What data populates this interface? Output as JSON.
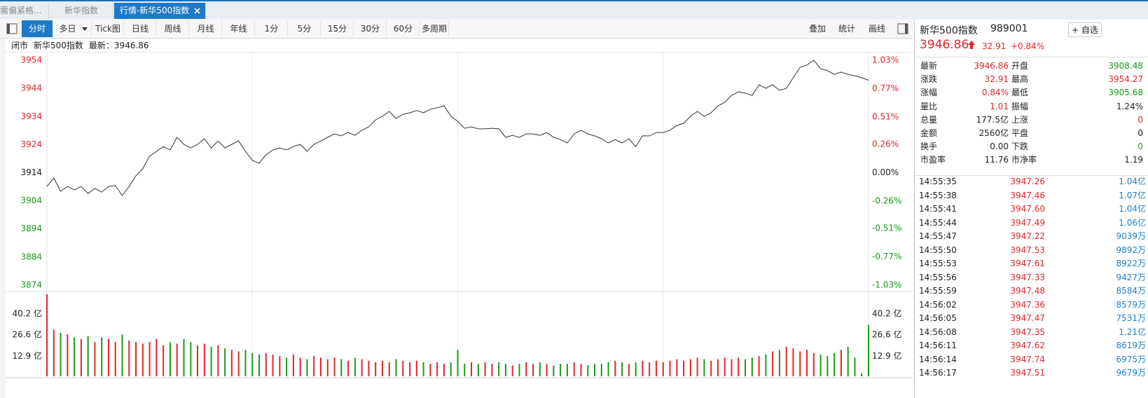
{
  "tabs": [
    "需偏紧格...",
    "新华指数",
    "行情-新华500指数"
  ],
  "toolbar": [
    "分时",
    "多日",
    "Tick图",
    "日线",
    "周线",
    "月线",
    "年线",
    "1分",
    "5分",
    "15分",
    "30分",
    "60分",
    "多周期"
  ],
  "toolbar_right": [
    "叠加",
    "统计",
    "画线"
  ],
  "status": {
    "state": "闭市",
    "name": "新华500指数",
    "latest": "最新：3946.86"
  },
  "quote": {
    "name": "新华500指数",
    "code": "989001",
    "add": "+ 自选",
    "price": "3946.86",
    "change": "32.91",
    "change_pct": "+0.84%",
    "rows": [
      [
        "最新",
        "3946.86",
        "开盘",
        "3908.48"
      ],
      [
        "涨跌",
        "32.91",
        "最高",
        "3954.27"
      ],
      [
        "涨幅",
        "0.84%",
        "最低",
        "3905.68"
      ],
      [
        "量比",
        "1.01",
        "振幅",
        "1.24%"
      ],
      [
        "总量",
        "177.5亿",
        "上涨",
        "0"
      ],
      [
        "金额",
        "2560亿",
        "平盘",
        "0"
      ],
      [
        "换手",
        "0.00",
        "下跌",
        "0"
      ],
      [
        "市盈率",
        "11.76",
        "市净率",
        "1.19"
      ]
    ]
  },
  "trades": [
    [
      "14:55:35",
      "3947.26",
      "1.04亿"
    ],
    [
      "14:55:38",
      "3947.46",
      "1.07亿"
    ],
    [
      "14:55:41",
      "3947.60",
      "1.04亿"
    ],
    [
      "14:55:44",
      "3947.49",
      "1.06亿"
    ],
    [
      "14:55:47",
      "3947.22",
      "9039万"
    ],
    [
      "14:55:50",
      "3947.53",
      "9892万"
    ],
    [
      "14:55:53",
      "3947.61",
      "8922万"
    ],
    [
      "14:55:56",
      "3947.33",
      "9427万"
    ],
    [
      "14:55:59",
      "3947.48",
      "8584万"
    ],
    [
      "14:56:02",
      "3947.36",
      "8579万"
    ],
    [
      "14:56:05",
      "3947.47",
      "7531万"
    ],
    [
      "14:56:08",
      "3947.35",
      "1.21亿"
    ],
    [
      "14:56:11",
      "3947.62",
      "8619万"
    ],
    [
      "14:56:14",
      "3947.74",
      "6975万"
    ],
    [
      "14:56:17",
      "3947.51",
      "9679万"
    ]
  ],
  "chart_data": {
    "type": "line",
    "color": "#333333",
    "up_color": "#e0262b",
    "down_color": "#1a9a1a",
    "x": [
      0,
      2,
      4,
      6,
      8,
      10,
      12,
      14,
      16,
      18,
      20,
      22,
      24,
      26,
      28,
      30,
      32,
      34,
      36,
      38,
      40,
      42,
      44,
      46,
      48,
      50,
      52,
      54,
      56,
      58,
      60,
      62,
      64,
      66,
      68,
      70,
      72,
      74,
      76,
      78,
      80,
      82,
      84,
      86,
      88,
      90,
      92,
      94,
      96,
      98,
      100,
      102,
      104,
      106,
      108,
      110,
      112,
      114,
      116,
      118,
      120,
      122,
      124,
      126,
      128,
      130,
      132,
      134,
      136,
      138,
      140,
      142,
      144,
      146,
      148,
      150,
      152,
      154,
      156,
      158,
      160,
      162,
      164,
      166,
      168,
      170,
      172,
      174,
      176,
      178,
      180,
      182,
      184,
      186,
      188,
      190,
      192,
      194,
      196,
      198,
      200,
      202,
      204,
      206,
      208,
      210,
      212,
      214,
      216,
      218,
      220,
      222,
      224,
      226,
      228,
      230,
      232,
      234,
      236,
      238,
      240
    ],
    "values": [
      3909.1,
      3912.1,
      3907.4,
      3909.1,
      3907.9,
      3909.1,
      3906.6,
      3908.4,
      3907.1,
      3909.1,
      3909.4,
      3905.9,
      3909.1,
      3912.9,
      3915.4,
      3919.9,
      3921.6,
      3923.3,
      3922.1,
      3926.6,
      3924.1,
      3922.8,
      3924.1,
      3926.1,
      3922.8,
      3925.3,
      3922.8,
      3924.1,
      3925.3,
      3921.6,
      3918.4,
      3917.4,
      3920.4,
      3922.1,
      3922.8,
      3922.1,
      3923.3,
      3924.1,
      3921.6,
      3924.1,
      3925.3,
      3926.6,
      3927.8,
      3927.1,
      3928.3,
      3927.3,
      3929.1,
      3930.3,
      3932.8,
      3934.1,
      3935.8,
      3933.3,
      3934.8,
      3935.3,
      3936.1,
      3935.3,
      3936.6,
      3937.1,
      3937.8,
      3934.1,
      3932.3,
      3929.8,
      3930.3,
      3929.6,
      3929.6,
      3929.8,
      3929.6,
      3926.6,
      3927.3,
      3926.6,
      3927.8,
      3927.8,
      3927.3,
      3928.3,
      3926.6,
      3925.8,
      3924.6,
      3927.8,
      3929.1,
      3927.8,
      3927.1,
      3926.1,
      3924.6,
      3925.8,
      3924.6,
      3926.1,
      3923.3,
      3927.1,
      3927.1,
      3928.3,
      3928.3,
      3929.1,
      3930.8,
      3931.6,
      3934.1,
      3935.8,
      3934.1,
      3935.3,
      3937.8,
      3939.0,
      3941.5,
      3942.8,
      3942.3,
      3941.5,
      3945.3,
      3944.0,
      3945.3,
      3943.3,
      3944.0,
      3947.8,
      3951.5,
      3952.3,
      3954.0,
      3951.0,
      3950.3,
      3949.0,
      3949.8,
      3949.0,
      3948.5,
      3947.8,
      3946.9
    ],
    "xlim": [
      0,
      240
    ],
    "ylim": [
      3872,
      3956
    ],
    "yticks": [
      3874,
      3884,
      3894,
      3904,
      3914,
      3924,
      3934,
      3944,
      3954
    ],
    "y2lim": [
      -1.08,
      1.08
    ],
    "y2ticks": [
      {
        "value": -1.03,
        "label": "-1.03%"
      },
      {
        "value": -0.77,
        "label": "-0.77%"
      },
      {
        "value": -0.51,
        "label": "-0.51%"
      },
      {
        "value": -0.26,
        "label": "-0.26%"
      },
      {
        "value": 0,
        "label": "0.00%"
      },
      {
        "value": 0.26,
        "label": "0.26%"
      },
      {
        "value": 0.51,
        "label": "0.51%"
      },
      {
        "value": 0.77,
        "label": "0.77%"
      },
      {
        "value": 1.03,
        "label": "1.03%"
      }
    ],
    "volume": {
      "ylim": [
        0,
        53.7
      ],
      "yticks": [
        {
          "value": 12.9,
          "label": "12.9 亿"
        },
        {
          "value": 26.6,
          "label": "26.6 亿"
        },
        {
          "value": 40.2,
          "label": "40.2 亿"
        }
      ],
      "values": [
        52.8,
        30,
        28,
        27,
        25,
        24,
        26,
        22,
        25,
        24,
        22,
        27,
        23,
        22,
        21,
        22,
        24,
        20,
        22,
        21,
        24,
        22,
        20,
        21,
        19,
        20,
        18,
        17,
        16,
        17,
        15,
        14,
        15,
        14,
        13,
        12,
        14,
        12,
        11,
        13,
        12,
        11,
        12,
        11,
        10,
        12,
        11,
        10,
        9,
        10,
        9,
        11,
        10,
        9,
        10,
        9,
        8,
        9,
        8,
        9,
        17,
        8,
        9,
        8,
        9,
        8,
        9,
        8,
        7,
        8,
        9,
        8,
        9,
        8,
        7,
        8,
        8,
        9,
        8,
        7,
        8,
        8,
        9,
        10,
        9,
        8,
        9,
        10,
        9,
        10,
        9,
        10,
        11,
        10,
        11,
        12,
        11,
        10,
        11,
        12,
        11,
        12,
        11,
        12,
        13,
        14,
        16,
        17,
        19,
        18,
        16,
        17,
        15,
        14,
        13,
        15,
        17,
        19,
        12,
        2,
        33
      ]
    }
  }
}
